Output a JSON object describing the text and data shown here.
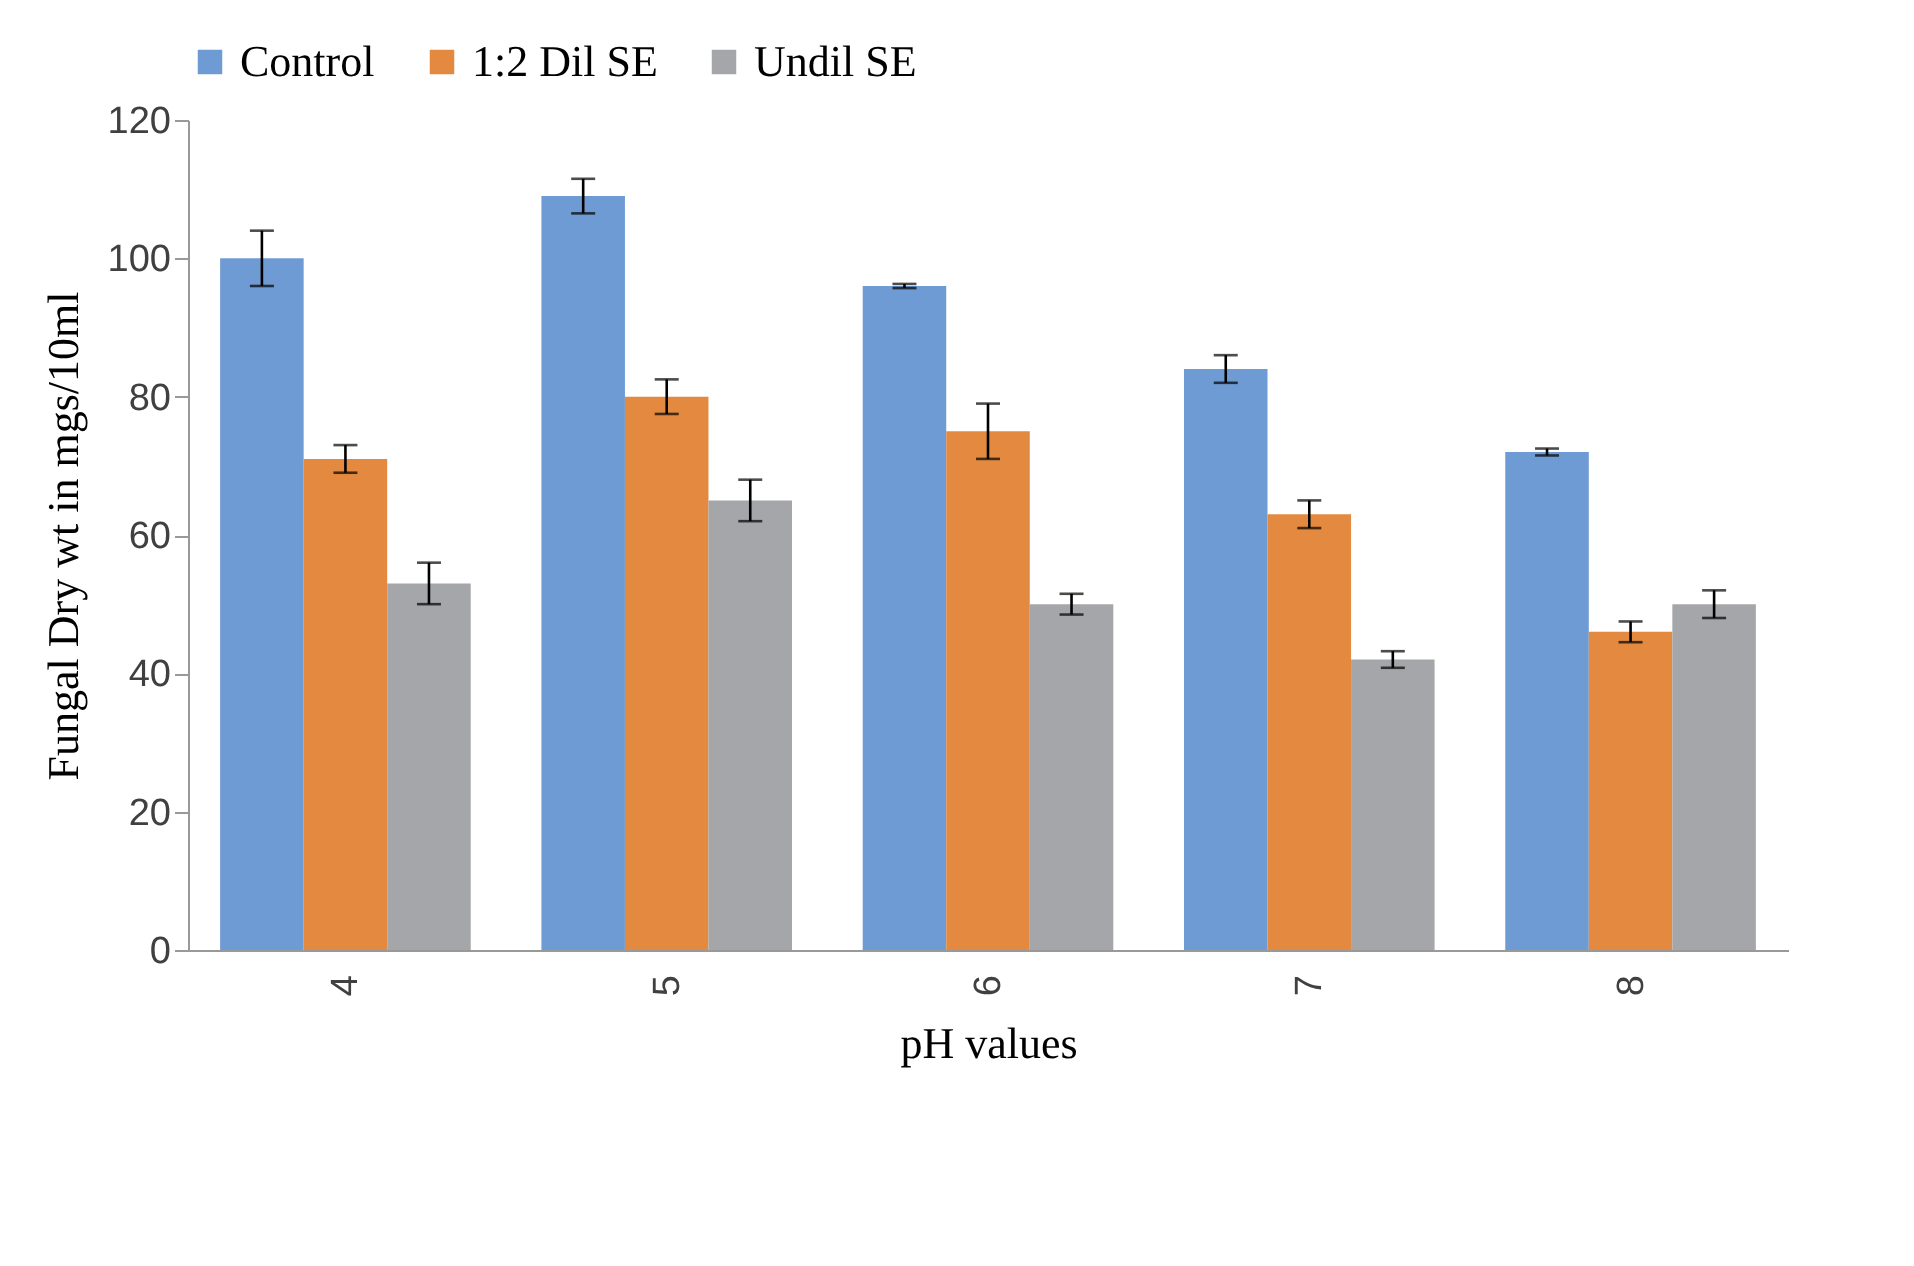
{
  "chart_data": {
    "type": "bar",
    "xlabel": "pH values",
    "ylabel": "Fungal Dry wt in mgs/10ml",
    "categories": [
      "4",
      "5",
      "6",
      "7",
      "8"
    ],
    "series": [
      {
        "name": "Control",
        "color": "#6f9bd4",
        "values": [
          100,
          109,
          96,
          84,
          72
        ],
        "errors": [
          4,
          2.5,
          0.3,
          2,
          0.5
        ]
      },
      {
        "name": "1:2 Dil SE",
        "color": "#e38a40",
        "values": [
          71,
          80,
          75,
          63,
          46
        ],
        "errors": [
          2,
          2.5,
          4,
          2,
          1.5
        ]
      },
      {
        "name": "Undil SE",
        "color": "#a5a6a9",
        "values": [
          53,
          65,
          50,
          42,
          50
        ],
        "errors": [
          3,
          3,
          1.5,
          1.2,
          2
        ]
      }
    ],
    "ylim": [
      0,
      120
    ],
    "yticks": [
      0,
      20,
      40,
      60,
      80,
      100,
      120
    ],
    "legend": "top",
    "grid": false
  }
}
